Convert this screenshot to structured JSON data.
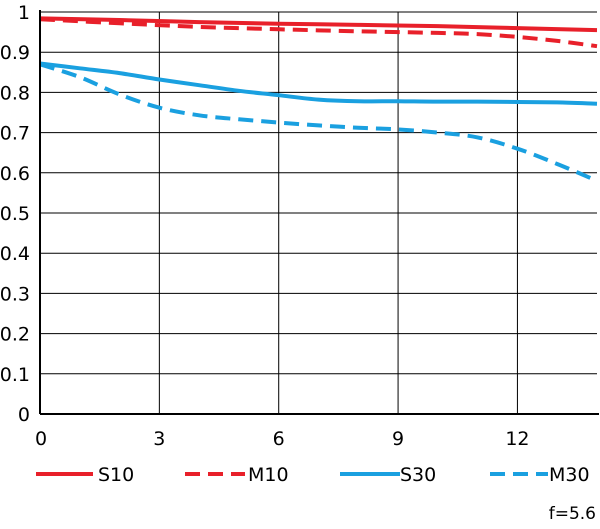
{
  "chart_data": {
    "type": "line",
    "xlim": [
      0,
      14
    ],
    "ylim": [
      0,
      1
    ],
    "x_ticks": [
      0,
      3,
      6,
      9,
      12
    ],
    "y_ticks": [
      {
        "v": 0,
        "label": "0"
      },
      {
        "v": 0.1,
        "label": "0.1"
      },
      {
        "v": 0.2,
        "label": "0.2"
      },
      {
        "v": 0.3,
        "label": "0.3"
      },
      {
        "v": 0.4,
        "label": "0.4"
      },
      {
        "v": 0.5,
        "label": "0.5"
      },
      {
        "v": 0.6,
        "label": "0.6"
      },
      {
        "v": 0.7,
        "label": "0.7"
      },
      {
        "v": 0.8,
        "label": "0.8"
      },
      {
        "v": 0.9,
        "label": "0.9"
      },
      {
        "v": 1,
        "label": "1"
      }
    ],
    "grid": true,
    "legend_position": "bottom",
    "annotation": "f=5.6",
    "series": [
      {
        "name": "S10",
        "color": "#e8202a",
        "dash": false,
        "x": [
          0,
          2,
          4,
          6,
          8,
          10,
          12,
          14
        ],
        "y": [
          0.984,
          0.98,
          0.975,
          0.971,
          0.968,
          0.965,
          0.96,
          0.955
        ]
      },
      {
        "name": "M10",
        "color": "#e8202a",
        "dash": true,
        "x": [
          0,
          2,
          4,
          6,
          8,
          10,
          11,
          12,
          13,
          14
        ],
        "y": [
          0.982,
          0.972,
          0.963,
          0.957,
          0.952,
          0.948,
          0.945,
          0.938,
          0.928,
          0.915
        ]
      },
      {
        "name": "S30",
        "color": "#1aa0e0",
        "dash": false,
        "x": [
          0,
          1,
          2,
          3,
          4,
          5,
          6,
          7,
          8,
          9,
          10,
          11,
          12,
          13,
          14
        ],
        "y": [
          0.872,
          0.86,
          0.848,
          0.832,
          0.818,
          0.804,
          0.793,
          0.782,
          0.778,
          0.778,
          0.777,
          0.777,
          0.776,
          0.775,
          0.772
        ]
      },
      {
        "name": "M30",
        "color": "#1aa0e0",
        "dash": true,
        "x": [
          0,
          1,
          2,
          3,
          4,
          5,
          6,
          7,
          8,
          9,
          10,
          11,
          12,
          13,
          14
        ],
        "y": [
          0.87,
          0.838,
          0.795,
          0.762,
          0.743,
          0.733,
          0.725,
          0.718,
          0.712,
          0.708,
          0.7,
          0.688,
          0.66,
          0.622,
          0.58
        ]
      }
    ]
  }
}
